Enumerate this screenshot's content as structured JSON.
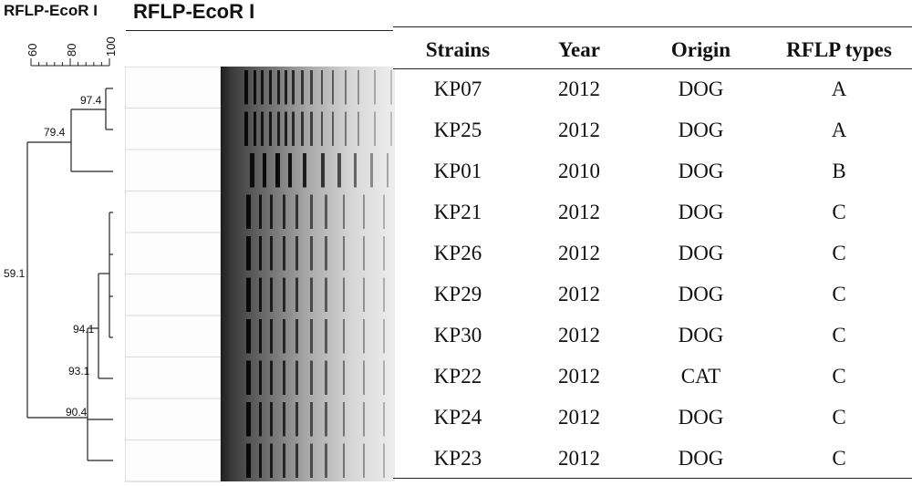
{
  "dendrogram": {
    "title": "RFLP-EcoR I",
    "scale_labels": [
      "60",
      "80",
      "100"
    ],
    "nodes": [
      {
        "label": "97.4",
        "value": 97.4,
        "members": [
          "KP07",
          "KP25"
        ]
      },
      {
        "label": "79.4",
        "value": 79.4,
        "members": [
          "KP07",
          "KP25",
          "KP01"
        ]
      },
      {
        "label": "94.1",
        "value": 94.1,
        "members": [
          "KP21",
          "KP26",
          "KP29",
          "KP30"
        ]
      },
      {
        "label": "93.1",
        "value": 93.1,
        "members": [
          "KP21",
          "KP26",
          "KP29",
          "KP30",
          "KP22"
        ]
      },
      {
        "label": "90.4",
        "value": 90.4,
        "members": [
          "KP21",
          "KP26",
          "KP29",
          "KP30",
          "KP22",
          "KP24",
          "KP23"
        ]
      },
      {
        "label": "59.1",
        "value": 59.1,
        "members": [
          "all"
        ]
      }
    ]
  },
  "gel": {
    "title": "RFLP-EcoR I",
    "lanes": 10
  },
  "table": {
    "headers": [
      "Strains",
      "Year",
      "Origin",
      "RFLP types"
    ],
    "rows": [
      [
        "KP07",
        "2012",
        "DOG",
        "A"
      ],
      [
        "KP25",
        "2012",
        "DOG",
        "A"
      ],
      [
        "KP01",
        "2010",
        "DOG",
        "B"
      ],
      [
        "KP21",
        "2012",
        "DOG",
        "C"
      ],
      [
        "KP26",
        "2012",
        "DOG",
        "C"
      ],
      [
        "KP29",
        "2012",
        "DOG",
        "C"
      ],
      [
        "KP30",
        "2012",
        "DOG",
        "C"
      ],
      [
        "KP22",
        "2012",
        "CAT",
        "C"
      ],
      [
        "KP24",
        "2012",
        "DOG",
        "C"
      ],
      [
        "KP23",
        "2012",
        "DOG",
        "C"
      ]
    ]
  }
}
